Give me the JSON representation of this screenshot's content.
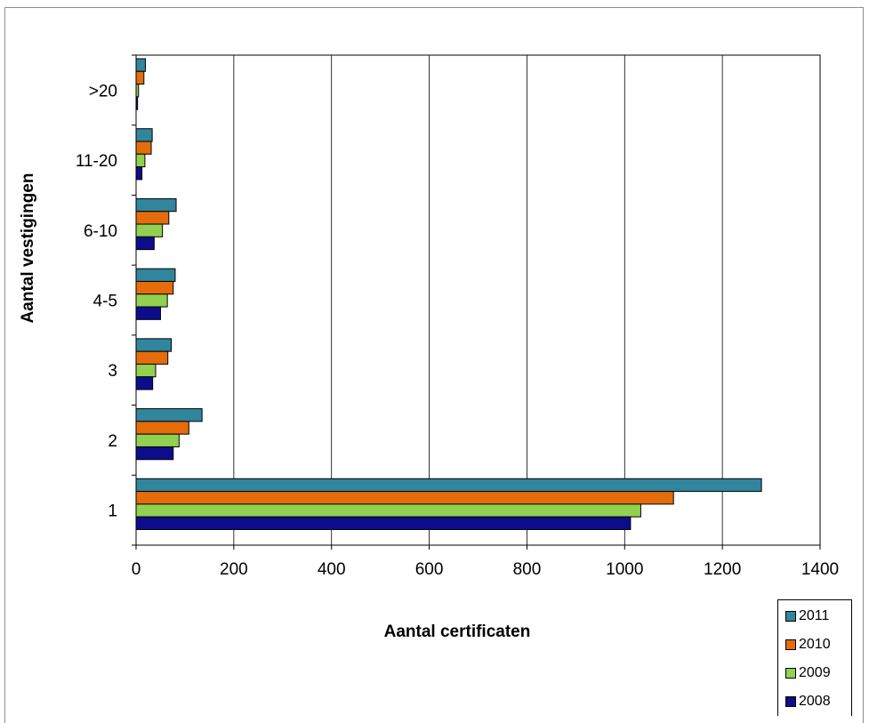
{
  "chart_data": {
    "type": "bar",
    "orientation": "horizontal",
    "categories": [
      "1",
      "2",
      "3",
      "4-5",
      "6-10",
      "11-20",
      ">20"
    ],
    "series": [
      {
        "name": "2011",
        "color": "#31859c",
        "values": [
          1280,
          135,
          72,
          80,
          82,
          33,
          19
        ]
      },
      {
        "name": "2010",
        "color": "#e46c0a",
        "values": [
          1100,
          108,
          65,
          76,
          67,
          31,
          16
        ]
      },
      {
        "name": "2009",
        "color": "#92d050",
        "values": [
          1033,
          88,
          40,
          64,
          54,
          18,
          5
        ]
      },
      {
        "name": "2008",
        "color": "#0d0d8c",
        "values": [
          1012,
          76,
          34,
          50,
          37,
          12,
          3
        ]
      }
    ],
    "xlabel": "Aantal certificaten",
    "ylabel": "Aantal vestigingen",
    "xlim": [
      0,
      1400
    ],
    "xticks": [
      "0",
      "200",
      "400",
      "600",
      "800",
      "1000",
      "1200",
      "1400"
    ],
    "grid": "vertical",
    "legend_position": "bottom-right"
  }
}
